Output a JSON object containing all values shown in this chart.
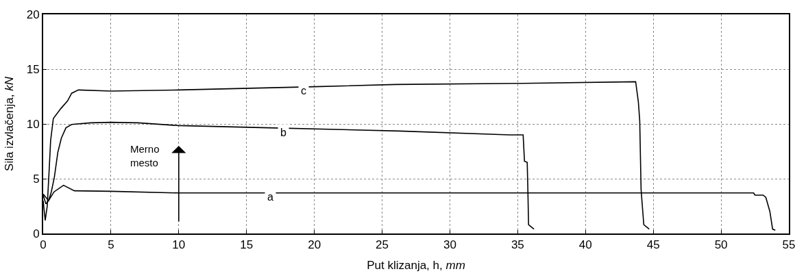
{
  "chart_data": {
    "type": "line",
    "xlabel": "Put klizanja, h, mm",
    "ylabel": "Sila izvlačenja, kN",
    "xlim": [
      0,
      55
    ],
    "xticks": [
      0,
      5,
      10,
      15,
      20,
      25,
      30,
      35,
      40,
      45,
      50,
      55
    ],
    "ylim": [
      0,
      20
    ],
    "yticks": [
      0,
      5,
      10,
      15,
      20
    ],
    "grid": true,
    "legend": false,
    "marker": "none",
    "line_style": "solid",
    "series": [
      {
        "name": "a",
        "color": "#000000",
        "x": [
          0,
          0.4,
          0.8,
          1.5,
          2.3,
          5,
          10,
          20,
          52.4,
          52.5,
          53.1,
          53.3,
          53.6,
          53.8,
          54.0
        ],
        "values": [
          3.6,
          3.0,
          3.8,
          4.4,
          3.9,
          3.85,
          3.7,
          3.7,
          3.7,
          3.5,
          3.5,
          3.3,
          2.0,
          0.4,
          0.3
        ]
      },
      {
        "name": "b",
        "color": "#000000",
        "x": [
          0,
          0.2,
          0.4,
          0.6,
          0.82,
          1.08,
          1.34,
          1.68,
          2.1,
          3.5,
          5,
          7,
          10,
          16.6,
          26.3,
          34.4,
          35.4,
          35.5,
          35.7,
          35.75,
          35.8,
          36.2
        ],
        "values": [
          3.5,
          2.7,
          3.0,
          3.8,
          5.1,
          7.4,
          8.7,
          9.65,
          9.95,
          10.1,
          10.15,
          10.1,
          9.85,
          9.65,
          9.35,
          9.0,
          9.0,
          6.6,
          6.5,
          4.0,
          0.8,
          0.4
        ]
      },
      {
        "name": "c",
        "color": "#000000",
        "x": [
          0,
          0.15,
          0.3,
          0.45,
          0.55,
          0.75,
          1.3,
          1.8,
          2.1,
          2.6,
          5,
          10,
          20,
          26,
          35,
          43.7,
          43.9,
          44.0,
          44.1,
          44.3,
          44.7
        ],
        "values": [
          3.0,
          1.2,
          2.5,
          6.0,
          8.5,
          10.5,
          11.4,
          12.1,
          12.8,
          13.1,
          13.0,
          13.1,
          13.4,
          13.6,
          13.7,
          13.85,
          12.0,
          10.3,
          4.0,
          0.8,
          0.4
        ]
      }
    ],
    "annotations": [
      "Merno\nmesto"
    ]
  }
}
